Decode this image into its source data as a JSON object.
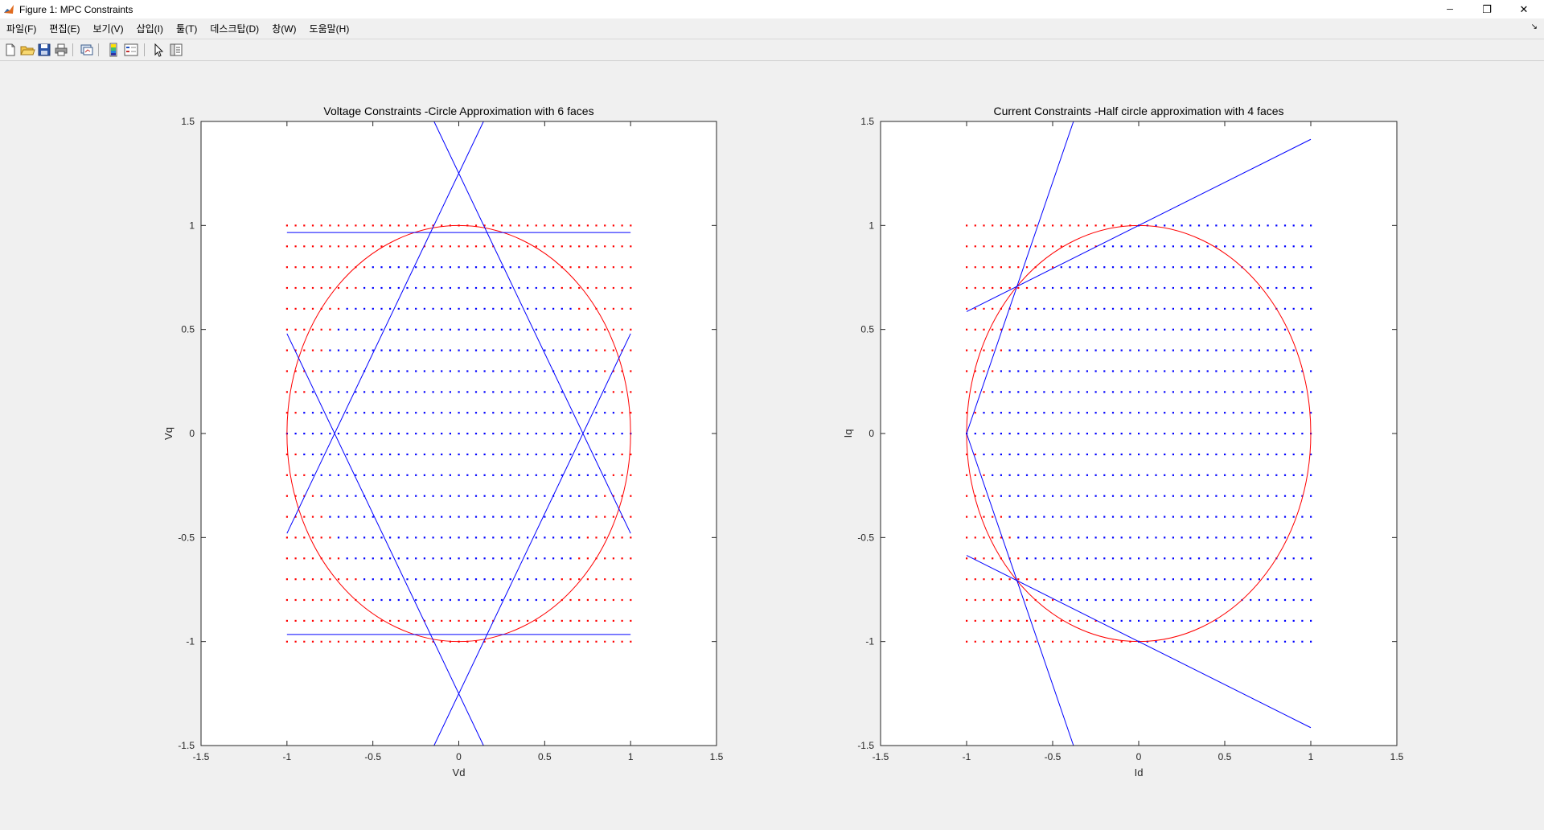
{
  "window": {
    "title": "Figure 1: MPC Constraints",
    "controls": {
      "minimize": "─",
      "maximize": "❐",
      "close": "✕"
    }
  },
  "menu": {
    "items": [
      "파일(F)",
      "편집(E)",
      "보기(V)",
      "삽입(I)",
      "툴(T)",
      "데스크탑(D)",
      "창(W)",
      "도움말(H)"
    ],
    "dock_arrow": "↘"
  },
  "toolbar": {
    "buttons": [
      "new-figure-icon",
      "open-file-icon",
      "save-icon",
      "print-icon",
      "link-plot-icon",
      "colorbar-icon",
      "legend-icon",
      "edit-plot-arrow-icon",
      "property-inspector-icon"
    ]
  },
  "colors": {
    "red": "#ff0000",
    "blue": "#0000ff",
    "axes_bg": "#ffffff",
    "figure_bg": "#f0f0f0",
    "axis": "#262626"
  },
  "chart_data": [
    {
      "type": "scatter",
      "title": "Voltage Constraints -Circle Approximation with 6 faces",
      "xlabel": "Vd",
      "ylabel": "Vq",
      "xlim": [
        -1.5,
        1.5
      ],
      "ylim": [
        -1.5,
        1.5
      ],
      "xticks": [
        "-1.5",
        "-1",
        "-0.5",
        "0",
        "0.5",
        "1",
        "1.5"
      ],
      "yticks": [
        "1.5",
        "1",
        "0.5",
        "0",
        "-0.5",
        "-1",
        "-1.5"
      ],
      "grid": false,
      "grid_points": {
        "x_range": [
          -1,
          1
        ],
        "x_step": 0.05,
        "y_range": [
          -1,
          1
        ],
        "y_step": 0.1
      },
      "series": [
        {
          "color": "red",
          "kind": "points",
          "description": "infeasible grid points outside hexagon"
        },
        {
          "color": "blue",
          "kind": "points",
          "description": "feasible grid points inside hexagon"
        },
        {
          "color": "red",
          "kind": "circle",
          "center": [
            0,
            0
          ],
          "radius": 1
        },
        {
          "color": "blue",
          "kind": "lines",
          "segments": [
            [
              [
                -0.144,
                1.5
              ],
              [
                1,
                -0.48
              ]
            ],
            [
              [
                0.144,
                1.5
              ],
              [
                -1,
                -0.48
              ]
            ],
            [
              [
                -0.144,
                -1.5
              ],
              [
                1,
                0.48
              ]
            ],
            [
              [
                0.144,
                -1.5
              ],
              [
                -1,
                0.48
              ]
            ],
            [
              [
                -1,
                0.966
              ],
              [
                1,
                0.966
              ]
            ],
            [
              [
                -1,
                -0.966
              ],
              [
                1,
                -0.966
              ]
            ]
          ]
        }
      ]
    },
    {
      "type": "scatter",
      "title": "Current Constraints -Half circle approximation with 4 faces",
      "xlabel": "Id",
      "ylabel": "Iq",
      "xlim": [
        -1.5,
        1.5
      ],
      "ylim": [
        -1.5,
        1.5
      ],
      "xticks": [
        "-1.5",
        "-1",
        "-0.5",
        "0",
        "0.5",
        "1",
        "1.5"
      ],
      "yticks": [
        "1.5",
        "1",
        "0.5",
        "0",
        "-0.5",
        "-1",
        "-1.5"
      ],
      "grid": false,
      "grid_points": {
        "x_range": [
          -1,
          1
        ],
        "x_step": 0.05,
        "y_range": [
          -1,
          1
        ],
        "y_step": 0.1
      },
      "series": [
        {
          "color": "red",
          "kind": "points",
          "description": "infeasible grid points outside half-hexagon"
        },
        {
          "color": "blue",
          "kind": "points",
          "description": "feasible grid points inside half-hexagon"
        },
        {
          "color": "red",
          "kind": "circle",
          "center": [
            0,
            0
          ],
          "radius": 1
        },
        {
          "color": "blue",
          "kind": "lines",
          "segments": [
            [
              [
                -1,
                0
              ],
              [
                -0.379,
                1.5
              ]
            ],
            [
              [
                -1,
                0
              ],
              [
                -0.379,
                -1.5
              ]
            ],
            [
              [
                -1,
                0.586
              ],
              [
                1,
                1.414
              ]
            ],
            [
              [
                -1,
                -0.586
              ],
              [
                1,
                -1.414
              ]
            ]
          ]
        }
      ]
    }
  ]
}
